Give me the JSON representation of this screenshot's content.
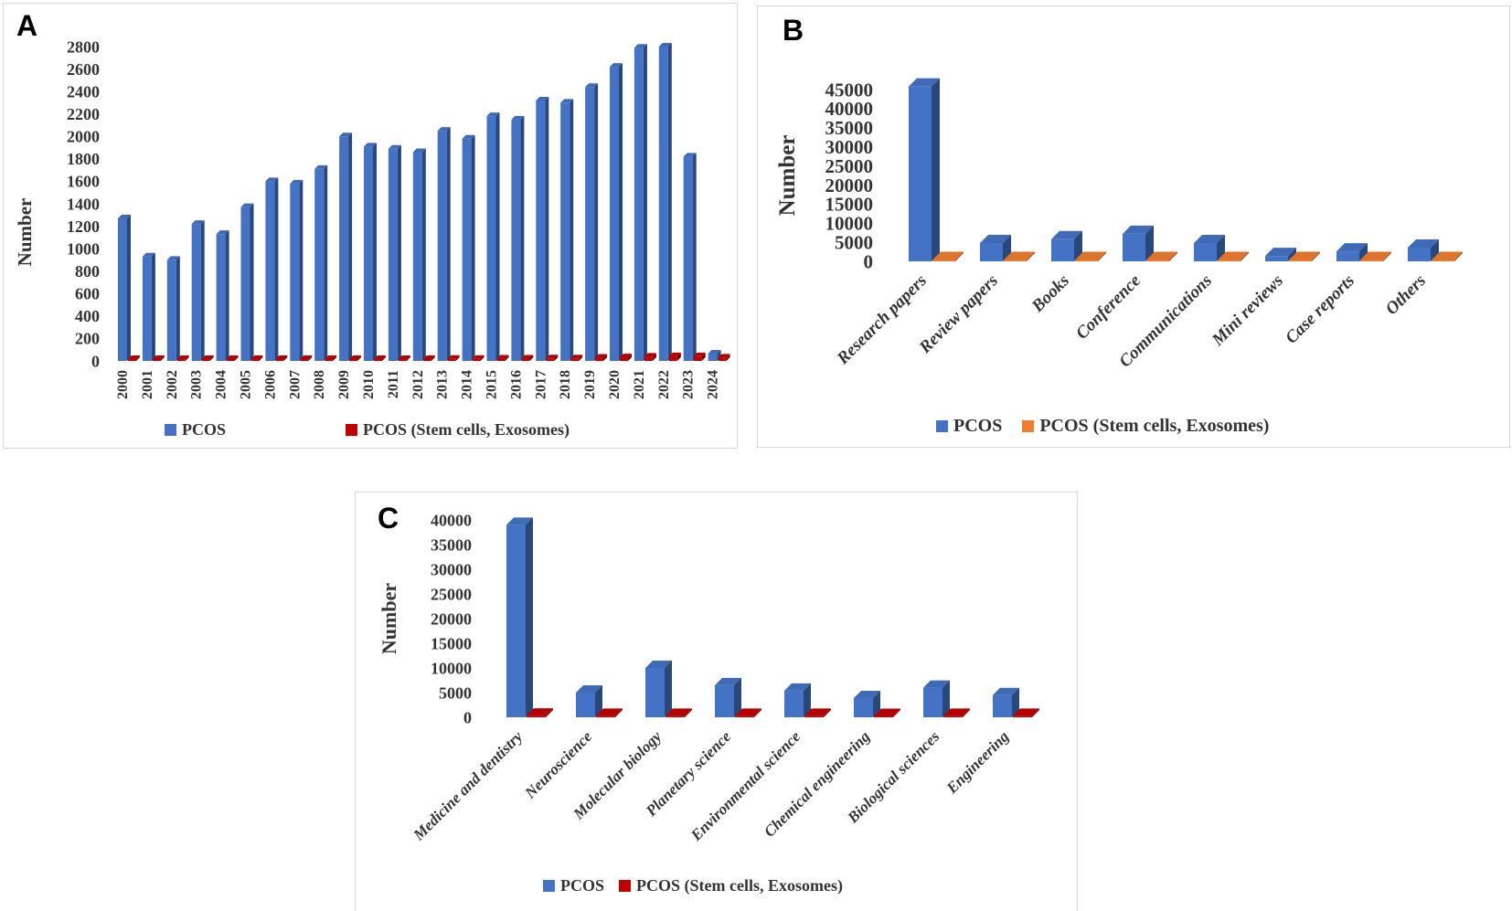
{
  "panels": [
    {
      "label": "A",
      "ylabel": "Number",
      "legend": [
        {
          "label": "PCOS",
          "color": "#4472C4"
        },
        {
          "label": "PCOS (Stem cells, Exosomes)",
          "color": "#C00000"
        }
      ]
    },
    {
      "label": "B",
      "ylabel": "Number",
      "legend": [
        {
          "label": "PCOS",
          "color": "#4472C4"
        },
        {
          "label": "PCOS (Stem cells, Exosomes)",
          "color": "#ED7D31"
        }
      ]
    },
    {
      "label": "C",
      "ylabel": "Number",
      "legend": [
        {
          "label": "PCOS",
          "color": "#4472C4"
        },
        {
          "label": "PCOS (Stem cells, Exosomes)",
          "color": "#C00000"
        }
      ]
    }
  ],
  "chart_data": [
    {
      "type": "bar",
      "panel": "A",
      "title": "",
      "xlabel": "",
      "ylabel": "Number",
      "ylim": [
        0,
        2800
      ],
      "ytick_step": 200,
      "grid": false,
      "legend_position": "bottom",
      "categories": [
        "2000",
        "2001",
        "2002",
        "2003",
        "2004",
        "2005",
        "2006",
        "2007",
        "2008",
        "2009",
        "2010",
        "2011",
        "2012",
        "2013",
        "2014",
        "2015",
        "2016",
        "2017",
        "2018",
        "2019",
        "2020",
        "2021",
        "2022",
        "2023",
        "2024"
      ],
      "series": [
        {
          "name": "PCOS",
          "color": "#4472C4",
          "values": [
            1270,
            930,
            900,
            1220,
            1130,
            1370,
            1600,
            1580,
            1710,
            2000,
            1910,
            1890,
            1860,
            2050,
            1980,
            2180,
            2150,
            2320,
            2300,
            2440,
            2620,
            2790,
            2800,
            1820,
            65
          ]
        },
        {
          "name": "PCOS (Stem cells, Exosomes)",
          "color": "#C00000",
          "values": [
            10,
            10,
            10,
            10,
            10,
            10,
            12,
            12,
            12,
            15,
            15,
            15,
            15,
            18,
            18,
            20,
            20,
            22,
            22,
            28,
            32,
            38,
            42,
            42,
            30
          ]
        }
      ]
    },
    {
      "type": "bar",
      "panel": "B",
      "title": "",
      "xlabel": "",
      "ylabel": "Number",
      "ylim": [
        0,
        45000
      ],
      "ytick_step": 5000,
      "grid": false,
      "legend_position": "bottom",
      "categories": [
        "Research papers",
        "Review papers",
        "Books",
        "Conference",
        "Communications",
        "Mini reviews",
        "Case reports",
        "Others"
      ],
      "series": [
        {
          "name": "PCOS",
          "color": "#4472C4",
          "values": [
            45800,
            4800,
            5800,
            7200,
            4800,
            1400,
            2600,
            3600
          ]
        },
        {
          "name": "PCOS (Stem cells, Exosomes)",
          "color": "#ED7D31",
          "values": [
            350,
            300,
            300,
            300,
            300,
            250,
            250,
            250
          ]
        }
      ]
    },
    {
      "type": "bar",
      "panel": "C",
      "title": "",
      "xlabel": "",
      "ylabel": "Number",
      "ylim": [
        0,
        40000
      ],
      "ytick_step": 5000,
      "grid": false,
      "legend_position": "bottom",
      "categories": [
        "Medicine and dentistry",
        "Neuroscience",
        "Molecular biology",
        "Planetary science",
        "Environmental science",
        "Chemical engineering",
        "Biological sciences",
        "Engineering"
      ],
      "series": [
        {
          "name": "PCOS",
          "color": "#4472C4",
          "values": [
            39000,
            5000,
            10000,
            6500,
            5400,
            3900,
            6000,
            4500
          ]
        },
        {
          "name": "PCOS (Stem cells, Exosomes)",
          "color": "#C00000",
          "values": [
            350,
            300,
            300,
            300,
            300,
            280,
            300,
            300
          ]
        }
      ]
    }
  ]
}
